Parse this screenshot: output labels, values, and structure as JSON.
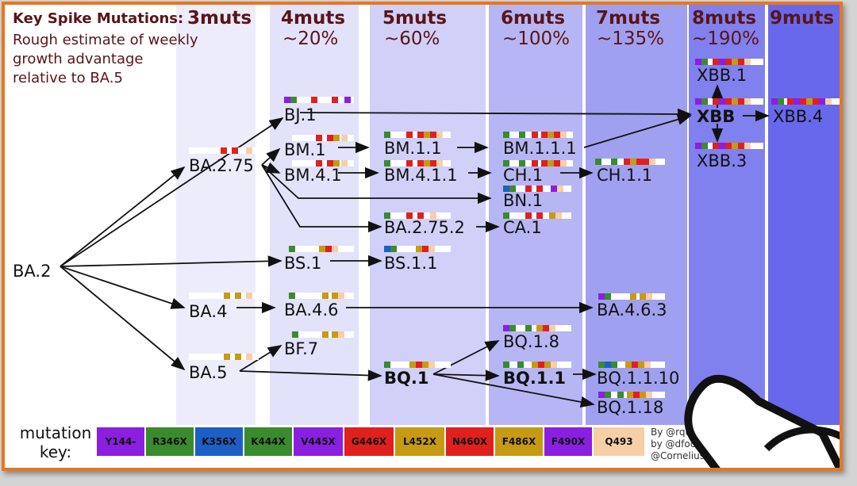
{
  "colors": {
    "frame": "#e8761e",
    "heading": "#5a1418",
    "col4": "#e4e4fa",
    "col5": "#d2d2f8",
    "col6": "#b4b4f3",
    "col7": "#a0a0f0",
    "col8": "#7e7eee",
    "col9": "#6666ec",
    "col3": "#ececfb"
  },
  "title": "Key Spike Mutations:",
  "subtitle_lines": [
    "Rough estimate of weekly",
    "growth advantage",
    "relative to BA.5"
  ],
  "columns": [
    {
      "label": "3muts",
      "pct": ""
    },
    {
      "label": "4muts",
      "pct": "~20%"
    },
    {
      "label": "5muts",
      "pct": "~60%"
    },
    {
      "label": "6muts",
      "pct": "~100%"
    },
    {
      "label": "7muts",
      "pct": "~135%"
    },
    {
      "label": "8muts",
      "pct": "~190%"
    },
    {
      "label": "9muts",
      "pct": ""
    }
  ],
  "nodes": {
    "ba2": "BA.2",
    "bj1": "BJ.1",
    "ba275": "BA.2.75",
    "bm1": "BM.1",
    "bm41": "BM.4.1",
    "bm11": "BM.1.1",
    "bm411": "BM.4.1.1",
    "bm111": "BM.1.1.1",
    "ch1": "CH.1",
    "ch11": "CH.1.1",
    "bn1": "BN.1",
    "ba2752": "BA.2.75.2",
    "ca1": "CA.1",
    "bs1": "BS.1",
    "bs11": "BS.1.1",
    "ba4": "BA.4",
    "ba46": "BA.4.6",
    "ba463": "BA.4.6.3",
    "bf7": "BF.7",
    "ba5": "BA.5",
    "bq1": "BQ.1",
    "bq18": "BQ.1.8",
    "bq11": "BQ.1.1",
    "bq1110": "BQ.1.1.10",
    "bq118": "BQ.1.18",
    "xbb1": "XBB.1",
    "xbb": "XBB",
    "xbb3": "XBB.3",
    "xbb4": "XBB.4"
  },
  "key": {
    "label_lines": [
      "mutation",
      "key:"
    ],
    "items": [
      {
        "label": "Y144-",
        "color": "#8a1fe0"
      },
      {
        "label": "R346X",
        "color": "#3a8a2e"
      },
      {
        "label": "K356X",
        "color": "#1d5fc4"
      },
      {
        "label": "K444X",
        "color": "#3a8a2e"
      },
      {
        "label": "V445X",
        "color": "#8a1fe0"
      },
      {
        "label": "G446X",
        "color": "#e0201e"
      },
      {
        "label": "L452X",
        "color": "#c79a14"
      },
      {
        "label": "N460X",
        "color": "#e0201e"
      },
      {
        "label": "F486X",
        "color": "#c79a14"
      },
      {
        "label": "F490X",
        "color": "#8a1fe0"
      },
      {
        "label": "Q493",
        "color": "#f6cfa6"
      }
    ]
  },
  "credits": [
    "By @rquil",
    "by @dfocosi and",
    "@CorneliusRo"
  ]
}
